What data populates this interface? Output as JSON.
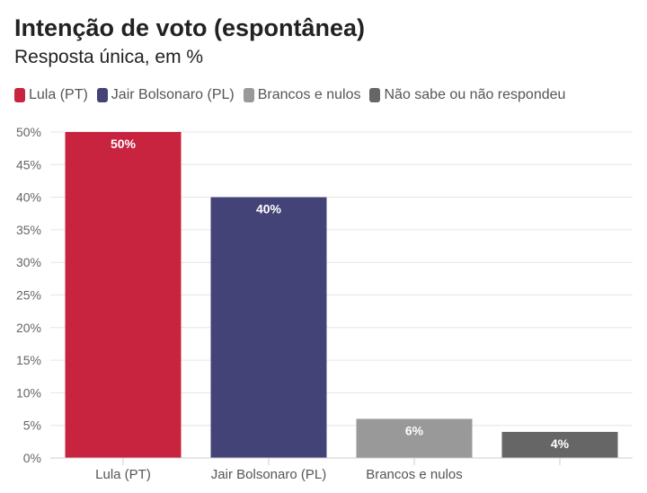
{
  "chart_data": {
    "type": "bar",
    "title": "Intenção de voto (espontânea)",
    "subtitle": "Resposta única, em %",
    "categories": [
      "Lula (PT)",
      "Jair Bolsonaro (PL)",
      "Brancos e nulos",
      ""
    ],
    "legend": [
      "Lula (PT)",
      "Jair Bolsonaro (PL)",
      "Brancos e nulos",
      "Não sabe ou não respondeu"
    ],
    "values": [
      50,
      40,
      6,
      4
    ],
    "data_labels": [
      "50%",
      "40%",
      "6%",
      "4%"
    ],
    "colors": [
      "#c8233f",
      "#434378",
      "#999999",
      "#666666"
    ],
    "yticks": [
      "0%",
      "5%",
      "10%",
      "15%",
      "20%",
      "25%",
      "30%",
      "35%",
      "40%",
      "45%",
      "50%"
    ],
    "ylim": [
      0,
      50
    ],
    "grid": true,
    "legend_position": "top-left"
  }
}
